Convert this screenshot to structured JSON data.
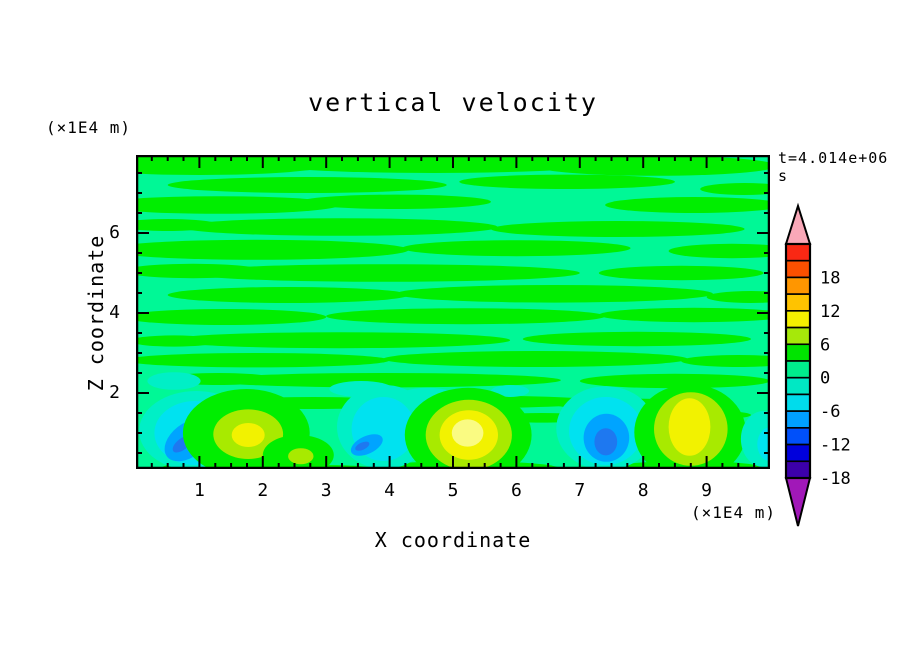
{
  "page": {
    "background": "#ffffff"
  },
  "title": "vertical velocity",
  "timestamp": "t=4.014e+06 s",
  "x_axis": {
    "title": "X coordinate",
    "unit_label": "(×1E4 m)",
    "tick_labels": [
      "1",
      "2",
      "3",
      "4",
      "5",
      "6",
      "7",
      "8",
      "9"
    ],
    "major_tick_values": [
      1,
      2,
      3,
      4,
      5,
      6,
      7,
      8,
      9
    ],
    "minor_step": 0.25,
    "range": [
      0,
      10
    ]
  },
  "z_axis": {
    "title": "Z coordinate",
    "unit_label": "(×1E4 m)",
    "tick_labels": [
      "6",
      "4",
      "2"
    ],
    "major_tick_values": [
      6,
      4,
      2
    ],
    "minor_step": 0.5,
    "range": [
      0.1,
      8.05
    ]
  },
  "colorbar": {
    "labels": [
      "18",
      "12",
      "6",
      "0",
      "-6",
      "-12",
      "-18"
    ],
    "label_values": [
      18,
      12,
      6,
      0,
      -6,
      -12,
      -18
    ],
    "colors_top_to_bottom": [
      "#F92814",
      "#FB5000",
      "#FF9600",
      "#FFC300",
      "#F4F000",
      "#A6E80A",
      "#00E400",
      "#00EC8C",
      "#00E8C4",
      "#00DCEC",
      "#00A0FF",
      "#0050FA",
      "#0000DC",
      "#3C00AA"
    ],
    "over_arrow_color": "#F9A8B8",
    "under_arrow_color": "#A118B8",
    "outline_color": "#000000"
  },
  "chart_data": {
    "type": "filled_contour",
    "title": "vertical velocity",
    "time_annotation": "t=4.014e+06 s",
    "xlabel": "X coordinate (×1E4 m)",
    "zlabel": "Z coordinate (×1E4 m)",
    "x_range": [
      0,
      10
    ],
    "z_range": [
      0,
      8
    ],
    "contour_level_min": -21,
    "contour_level_max": 21,
    "contour_level_step": 3,
    "background_band": "-3..0",
    "map_colors": {
      "spring": "#00F896",
      "green": "#00EE00",
      "mint": "#00EFC6",
      "cyan": "#00E2F0",
      "sky": "#00A4FF",
      "blue": "#1E78F0",
      "chart": "#A8EA00",
      "yellow": "#F2F200",
      "pale": "#FAFB82"
    },
    "streaks_band_0_to_3": [
      [
        1.0,
        7.7,
        2.0,
        0.25
      ],
      [
        4.7,
        7.78,
        2.9,
        0.28
      ],
      [
        8.2,
        7.68,
        1.9,
        0.25
      ],
      [
        2.7,
        7.2,
        2.2,
        0.2
      ],
      [
        6.8,
        7.28,
        1.7,
        0.18
      ],
      [
        9.6,
        7.1,
        0.7,
        0.15
      ],
      [
        1.3,
        6.7,
        1.9,
        0.22
      ],
      [
        4.1,
        6.78,
        1.5,
        0.18
      ],
      [
        8.8,
        6.7,
        1.4,
        0.2
      ],
      [
        3.2,
        6.15,
        2.5,
        0.22
      ],
      [
        7.6,
        6.1,
        2.0,
        0.2
      ],
      [
        0.5,
        6.2,
        0.8,
        0.15
      ],
      [
        1.9,
        5.58,
        2.4,
        0.25
      ],
      [
        6.0,
        5.62,
        1.8,
        0.2
      ],
      [
        9.4,
        5.55,
        1.0,
        0.18
      ],
      [
        3.9,
        5.0,
        3.1,
        0.22
      ],
      [
        0.9,
        5.05,
        1.1,
        0.18
      ],
      [
        8.6,
        5.0,
        1.3,
        0.18
      ],
      [
        2.4,
        4.45,
        1.9,
        0.2
      ],
      [
        6.6,
        4.48,
        2.5,
        0.22
      ],
      [
        9.7,
        4.4,
        0.7,
        0.15
      ],
      [
        1.4,
        3.9,
        1.6,
        0.2
      ],
      [
        5.2,
        3.92,
        2.2,
        0.2
      ],
      [
        8.8,
        3.95,
        1.5,
        0.18
      ],
      [
        3.2,
        3.32,
        2.7,
        0.2
      ],
      [
        7.9,
        3.35,
        1.8,
        0.18
      ],
      [
        0.6,
        3.3,
        0.7,
        0.14
      ],
      [
        1.9,
        2.82,
        2.1,
        0.18
      ],
      [
        6.3,
        2.85,
        2.4,
        0.2
      ],
      [
        9.5,
        2.8,
        0.9,
        0.15
      ],
      [
        3.9,
        2.32,
        2.8,
        0.18
      ],
      [
        1.3,
        2.35,
        0.9,
        0.15
      ],
      [
        8.5,
        2.3,
        1.5,
        0.18
      ],
      [
        2.8,
        1.75,
        1.5,
        0.15
      ],
      [
        5.5,
        1.78,
        1.8,
        0.15
      ],
      [
        7.8,
        1.72,
        1.2,
        0.14
      ],
      [
        4.4,
        1.42,
        1.2,
        0.13
      ],
      [
        6.4,
        1.38,
        0.9,
        0.12
      ],
      [
        1.6,
        1.5,
        0.8,
        0.12
      ],
      [
        8.9,
        1.45,
        0.8,
        0.12
      ],
      [
        1.7,
        0.12,
        1.3,
        0.2
      ],
      [
        5.2,
        0.1,
        1.5,
        0.2
      ],
      [
        8.7,
        0.12,
        1.2,
        0.18
      ],
      [
        3.0,
        0.08,
        0.8,
        0.12
      ]
    ],
    "features": [
      [
        "mint",
        0.6,
        2.3,
        0.42,
        0.22,
        0
      ],
      [
        "mint",
        3.55,
        2.1,
        0.5,
        0.2,
        0
      ],
      [
        "mint",
        4.6,
        1.95,
        0.42,
        0.18,
        0
      ],
      [
        "mint",
        5.9,
        2.05,
        0.3,
        0.15,
        0
      ],
      [
        "mint",
        0.95,
        1.05,
        0.9,
        1.0,
        0
      ],
      [
        "cyan",
        0.93,
        1.0,
        0.64,
        0.8,
        0
      ],
      [
        "sky",
        0.82,
        0.82,
        0.42,
        0.42,
        -38
      ],
      [
        "blue",
        0.73,
        0.72,
        0.18,
        0.14,
        -38
      ],
      [
        "green",
        1.74,
        1.0,
        1.0,
        1.1,
        0
      ],
      [
        "chart",
        1.77,
        0.97,
        0.55,
        0.62,
        0
      ],
      [
        "yellow",
        1.77,
        0.95,
        0.26,
        0.3,
        0
      ],
      [
        "green",
        2.56,
        0.45,
        0.56,
        0.5,
        0
      ],
      [
        "chart",
        2.6,
        0.42,
        0.2,
        0.2,
        0
      ],
      [
        "mint",
        3.92,
        1.15,
        0.75,
        1.05,
        0
      ],
      [
        "cyan",
        3.9,
        1.1,
        0.5,
        0.8,
        0
      ],
      [
        "sky",
        3.64,
        0.7,
        0.27,
        0.22,
        -25
      ],
      [
        "blue",
        3.57,
        0.67,
        0.12,
        0.09,
        -25
      ],
      [
        "green",
        5.24,
        0.95,
        1.0,
        1.18,
        0
      ],
      [
        "chart",
        5.25,
        0.95,
        0.68,
        0.88,
        0
      ],
      [
        "yellow",
        5.25,
        0.95,
        0.46,
        0.62,
        0
      ],
      [
        "pale",
        5.23,
        1.0,
        0.25,
        0.34,
        0
      ],
      [
        "mint",
        7.41,
        1.12,
        0.78,
        1.05,
        0
      ],
      [
        "cyan",
        7.41,
        1.05,
        0.58,
        0.85,
        0
      ],
      [
        "sky",
        7.42,
        0.88,
        0.36,
        0.6,
        0
      ],
      [
        "blue",
        7.41,
        0.78,
        0.18,
        0.34,
        0
      ],
      [
        "green",
        8.74,
        1.02,
        0.88,
        1.2,
        0
      ],
      [
        "chart",
        8.75,
        1.1,
        0.58,
        0.92,
        0
      ],
      [
        "yellow",
        8.73,
        1.15,
        0.33,
        0.72,
        0
      ],
      [
        "mint",
        9.9,
        0.85,
        0.36,
        0.7,
        0
      ],
      [
        "cyan",
        10.0,
        0.72,
        0.2,
        0.42,
        0
      ]
    ]
  }
}
